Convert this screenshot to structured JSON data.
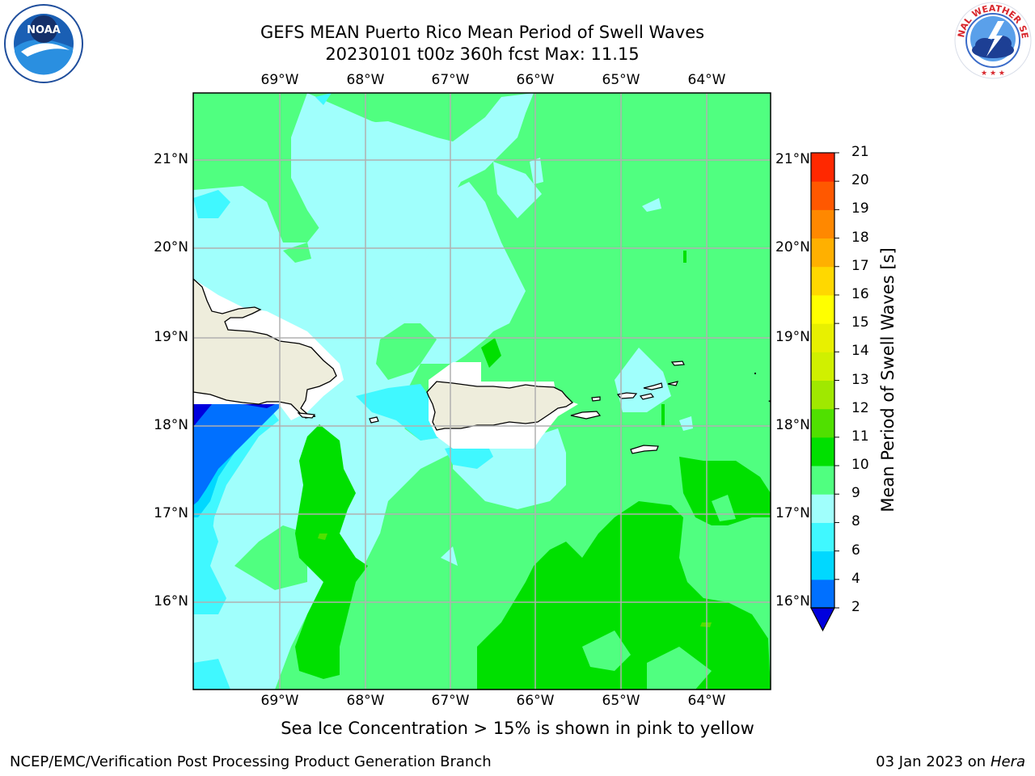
{
  "header": {
    "title": "GEFS MEAN Puerto Rico Mean Period of Swell Waves",
    "subtitle": "20230101 t00z 360h fcst   Max: 11.15"
  },
  "logos": {
    "left": "noaa-logo",
    "right": "nws-logo",
    "right_text": "NATIONAL WEATHER SERVICE"
  },
  "map": {
    "lon_labels": [
      "69°W",
      "68°W",
      "67°W",
      "66°W",
      "65°W",
      "64°W"
    ],
    "lat_labels": [
      "21°N",
      "20°N",
      "19°N",
      "18°N",
      "17°N",
      "16°N"
    ],
    "lon_range": [
      -70.0,
      -63.25
    ],
    "lat_range": [
      15.0,
      21.75
    ],
    "gridlines": true
  },
  "colorbar": {
    "title": "Mean Period of Swell Waves [s]",
    "ticks": [
      "2",
      "4",
      "6",
      "8",
      "9",
      "10",
      "11",
      "12",
      "13",
      "14",
      "15",
      "16",
      "17",
      "18",
      "19",
      "20",
      "21"
    ],
    "boundaries": [
      2,
      4,
      6,
      8,
      9,
      10,
      11,
      12,
      13,
      14,
      15,
      16,
      17,
      18,
      19,
      20,
      21
    ],
    "colors": [
      "#0070ff",
      "#00d8ff",
      "#40f8ff",
      "#a0fffc",
      "#50ff80",
      "#00e000",
      "#50e000",
      "#a0e800",
      "#d0f000",
      "#e8f000",
      "#ffff00",
      "#ffd800",
      "#ffb000",
      "#ff8800",
      "#ff5800",
      "#ff2800"
    ],
    "under_color": "#0000dd",
    "extend": "min"
  },
  "caption": "Sea Ice Concentration > 15% is shown in pink to yellow",
  "footer": {
    "left": "NCEP/EMC/Verification Post Processing Product Generation Branch",
    "right_date": "03 Jan 2023 on ",
    "right_host": "Hera"
  }
}
